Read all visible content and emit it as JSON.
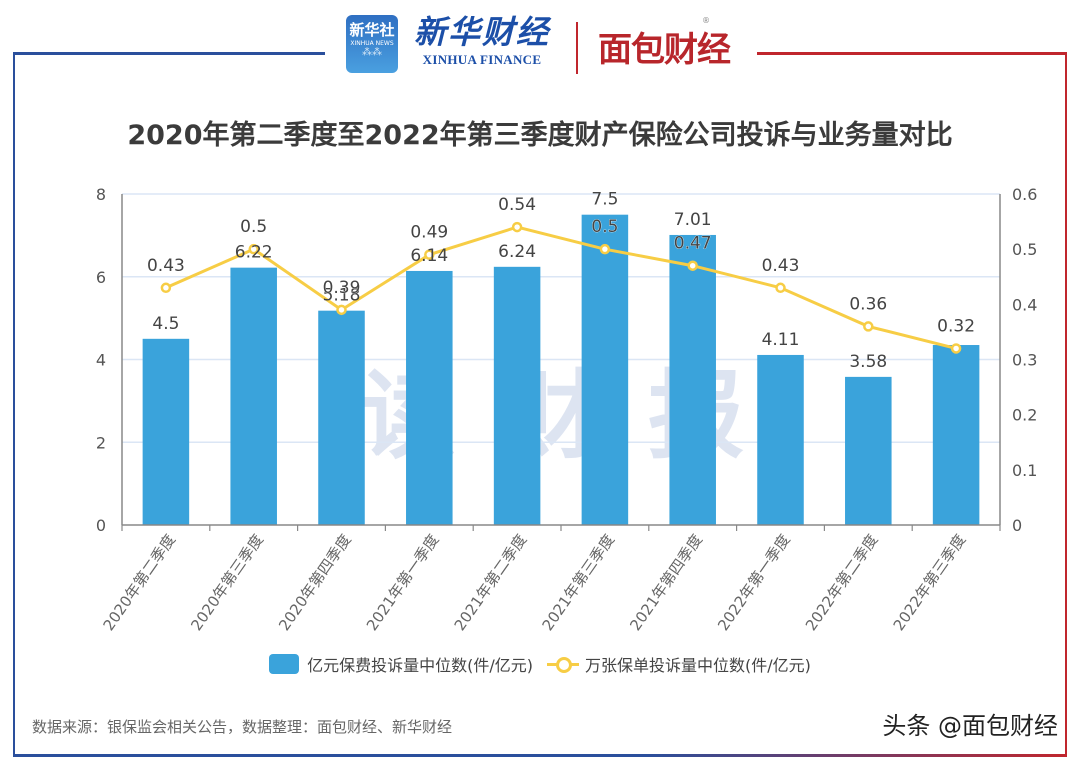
{
  "header": {
    "logo_xinhua_cn": "新华社",
    "logo_xinhua_en": "XINHUA NEWS",
    "logo_xf_cn": "新华财经",
    "logo_xf_en": "XINHUA FINANCE",
    "logo_mb": "面包财经",
    "registered_mark": "®"
  },
  "watermark_center": "读财报",
  "legend": {
    "bar_label": "亿元保费投诉量中位数(件/亿元)",
    "line_label": "万张保单投诉量中位数(件/亿元)"
  },
  "footer": {
    "source": "数据来源：银保监会相关公告，数据整理：面包财经、新华财经",
    "watermark": "头条 @面包财经"
  },
  "colors": {
    "bar": "#3aa3db",
    "line": "#f7cd45",
    "frame_left": "#2a4f9c",
    "frame_right": "#c0262d",
    "grid": "#dbe6f5"
  },
  "chart_data": {
    "type": "bar",
    "title": "2020年第二季度至2022年第三季度财产保险公司投诉与业务量对比",
    "categories": [
      "2020年第二季度",
      "2020年第三季度",
      "2020年第四季度",
      "2021年第一季度",
      "2021年第二季度",
      "2021年第三季度",
      "2021年第四季度",
      "2022年第一季度",
      "2022年第二季度",
      "2022年第三季度"
    ],
    "series": [
      {
        "name": "亿元保费投诉量中位数(件/亿元)",
        "type": "bar",
        "axis": "left",
        "values": [
          4.5,
          6.22,
          5.18,
          6.14,
          6.24,
          7.5,
          7.01,
          4.11,
          3.58,
          4.35
        ],
        "labels": [
          "4.5",
          "6.22",
          "5.18",
          "6.14",
          "6.24",
          "7.5",
          "7.01",
          "4.11",
          "3.58",
          ""
        ]
      },
      {
        "name": "万张保单投诉量中位数(件/亿元)",
        "type": "line",
        "axis": "right",
        "values": [
          0.43,
          0.5,
          0.39,
          0.49,
          0.54,
          0.5,
          0.47,
          0.43,
          0.36,
          0.32
        ],
        "labels": [
          "0.43",
          "0.5",
          "0.39",
          "0.49",
          "0.54",
          "0.5",
          "0.47",
          "0.43",
          "0.36",
          "0.32"
        ]
      }
    ],
    "y_left": {
      "min": 0,
      "max": 8,
      "ticks": [
        "0",
        "2",
        "4",
        "6",
        "8"
      ]
    },
    "y_right": {
      "min": 0,
      "max": 0.6,
      "ticks": [
        "0",
        "0.1",
        "0.2",
        "0.3",
        "0.4",
        "0.5",
        "0.6"
      ]
    },
    "xlabel": "",
    "ylabel": "",
    "grid": true,
    "legend_position": "bottom"
  }
}
